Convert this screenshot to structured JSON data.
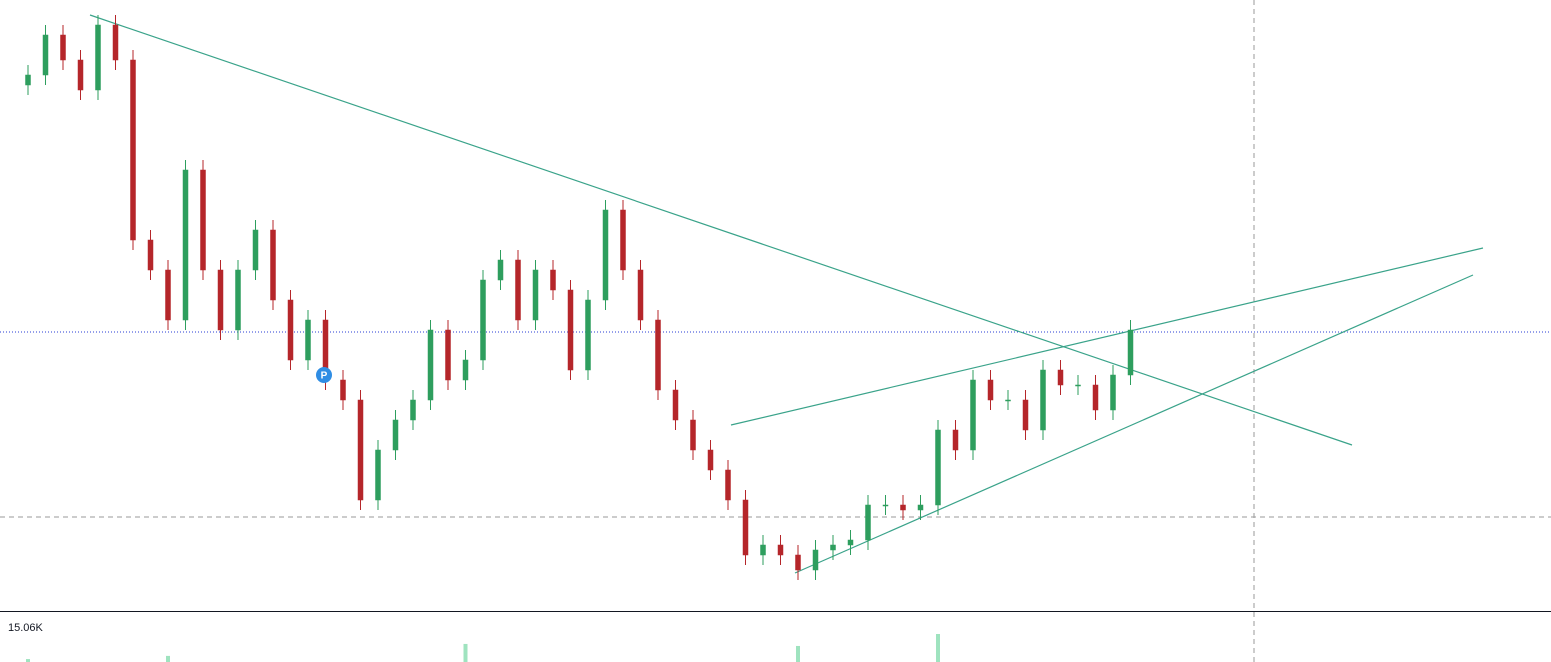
{
  "chart_data": {
    "type": "candlestick",
    "up_color": "#2e9e5e",
    "down_color": "#b5262a",
    "ylim": [
      0,
      612
    ],
    "open": [
      527,
      537,
      577,
      552,
      522,
      587,
      552,
      372,
      342,
      292,
      442,
      342,
      282,
      342,
      382,
      312,
      252,
      292,
      232,
      212,
      112,
      162,
      192,
      212,
      282,
      232,
      252,
      332,
      352,
      292,
      342,
      322,
      242,
      312,
      402,
      342,
      292,
      222,
      192,
      162,
      142,
      112,
      57,
      67,
      57,
      42,
      62,
      67,
      72,
      107,
      107,
      102,
      107,
      182,
      162,
      232,
      212,
      212,
      182,
      242,
      227,
      227,
      202,
      237
    ],
    "high": [
      547,
      587,
      587,
      562,
      597,
      597,
      562,
      382,
      352,
      452,
      452,
      352,
      352,
      392,
      392,
      322,
      302,
      302,
      242,
      222,
      172,
      202,
      222,
      292,
      292,
      262,
      342,
      362,
      362,
      352,
      352,
      332,
      322,
      412,
      412,
      352,
      302,
      232,
      202,
      172,
      152,
      122,
      77,
      77,
      67,
      72,
      77,
      82,
      117,
      117,
      117,
      117,
      192,
      192,
      242,
      242,
      222,
      222,
      252,
      252,
      237,
      237,
      247,
      292
    ],
    "low": [
      517,
      527,
      542,
      512,
      512,
      542,
      362,
      332,
      282,
      282,
      332,
      272,
      272,
      332,
      302,
      242,
      242,
      222,
      202,
      102,
      102,
      152,
      182,
      202,
      222,
      222,
      242,
      322,
      282,
      282,
      312,
      232,
      232,
      302,
      332,
      282,
      212,
      182,
      152,
      132,
      102,
      47,
      47,
      47,
      32,
      32,
      52,
      57,
      62,
      97,
      92,
      92,
      97,
      152,
      152,
      202,
      202,
      172,
      172,
      217,
      217,
      192,
      192,
      227
    ],
    "close": [
      537,
      577,
      552,
      522,
      587,
      552,
      372,
      342,
      292,
      442,
      342,
      282,
      342,
      382,
      312,
      252,
      292,
      232,
      212,
      112,
      162,
      192,
      212,
      282,
      232,
      252,
      332,
      352,
      292,
      342,
      322,
      242,
      312,
      402,
      342,
      292,
      222,
      192,
      162,
      142,
      112,
      57,
      67,
      57,
      42,
      62,
      67,
      72,
      107,
      107,
      102,
      107,
      182,
      162,
      232,
      212,
      212,
      182,
      242,
      227,
      227,
      202,
      237,
      282
    ],
    "volume_label": "15.06K",
    "volume_lim": [
      0,
      15.06
    ],
    "volume_index": [
      0,
      8,
      25,
      44,
      52
    ],
    "volume_values": [
      1.3,
      2.7,
      8,
      7.1,
      12.4
    ],
    "volume_color": "#9fe3bf"
  }
}
